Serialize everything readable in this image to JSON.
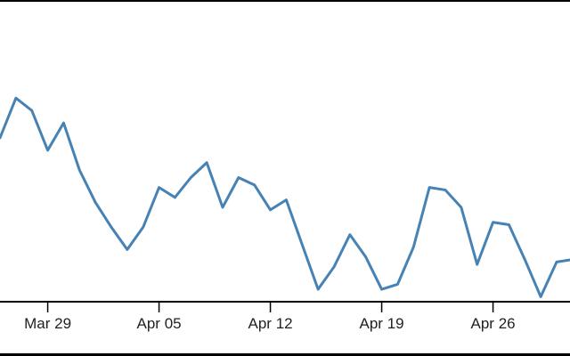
{
  "chart_data": {
    "type": "line",
    "title": "",
    "xlabel": "",
    "ylabel": "",
    "grid": false,
    "legend": "none",
    "color": "#4682b4",
    "x_ticks": [
      "Mar 29",
      "Apr 05",
      "Apr 12",
      "Apr 19",
      "Apr 26"
    ],
    "x": [
      "Mar 26",
      "Mar 27",
      "Mar 28",
      "Mar 29",
      "Mar 30",
      "Mar 31",
      "Apr 01",
      "Apr 02",
      "Apr 03",
      "Apr 04",
      "Apr 05",
      "Apr 06",
      "Apr 07",
      "Apr 08",
      "Apr 09",
      "Apr 10",
      "Apr 11",
      "Apr 12",
      "Apr 13",
      "Apr 14",
      "Apr 15",
      "Apr 16",
      "Apr 17",
      "Apr 18",
      "Apr 19",
      "Apr 20",
      "Apr 21",
      "Apr 22",
      "Apr 23",
      "Apr 24",
      "Apr 25",
      "Apr 26",
      "Apr 27",
      "Apr 28",
      "Apr 29",
      "Apr 30",
      "May 01"
    ],
    "series": [
      {
        "values": [
          66,
          82,
          77,
          61,
          72,
          53,
          40,
          30,
          21,
          30,
          46,
          42,
          50,
          56,
          38,
          50,
          47,
          37,
          41,
          23,
          5,
          14,
          27,
          18,
          5,
          7,
          22,
          46,
          45,
          38,
          15,
          32,
          31,
          17,
          2,
          16,
          17
        ]
      }
    ],
    "ylim": [
      0,
      100
    ]
  }
}
